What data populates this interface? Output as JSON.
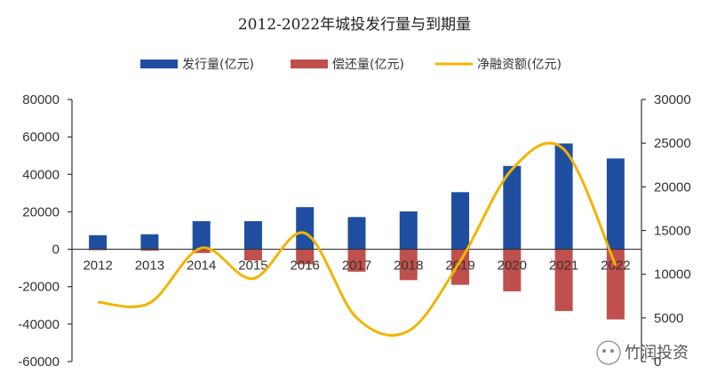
{
  "chart_data": {
    "type": "bar",
    "title": "2012-2022年城投发行量与到期量",
    "categories": [
      "2012",
      "2013",
      "2014",
      "2015",
      "2016",
      "2017",
      "2018",
      "2019",
      "2020",
      "2021",
      "2022"
    ],
    "series": [
      {
        "name": "发行量(亿元)",
        "kind": "bar",
        "axis": "left",
        "color": "#1f4ea1",
        "values": [
          7500,
          8000,
          15000,
          15000,
          22500,
          17200,
          20200,
          30500,
          44500,
          56500,
          48500
        ]
      },
      {
        "name": "偿还量(亿元)",
        "kind": "bar",
        "axis": "left",
        "color": "#c0504d",
        "values": [
          -500,
          -800,
          -2000,
          -6000,
          -8000,
          -12000,
          -16500,
          -19000,
          -22500,
          -33000,
          -37500
        ]
      },
      {
        "name": "净融资额(亿元)",
        "kind": "line",
        "axis": "right",
        "color": "#f2b400",
        "values": [
          6800,
          6700,
          13000,
          9500,
          14700,
          5000,
          3500,
          11500,
          22000,
          24300,
          11000
        ]
      }
    ],
    "left_axis": {
      "min": -60000,
      "max": 80000,
      "step": 20000,
      "ticks": [
        "80000",
        "60000",
        "40000",
        "20000",
        "0",
        "-20000",
        "-40000",
        "-60000"
      ]
    },
    "right_axis": {
      "min": 0,
      "max": 30000,
      "step": 5000,
      "ticks": [
        "30000",
        "25000",
        "20000",
        "15000",
        "10000",
        "5000",
        "0"
      ]
    },
    "legend": {
      "placement": "top"
    },
    "grid": false
  },
  "watermark": {
    "text": "竹润投资"
  }
}
